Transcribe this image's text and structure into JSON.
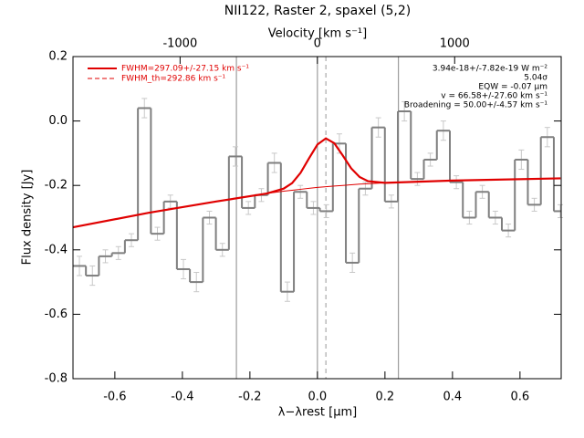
{
  "chart_data": {
    "type": "step",
    "title": "NII122, Raster 2, spaxel (5,2)",
    "xlabel": "λ−λrest [μm]",
    "ylabel": "Flux density [Jy]",
    "x2label": "Velocity [km s⁻¹]",
    "xlim": [
      -0.724,
      0.722
    ],
    "ylim": [
      -0.8,
      0.2
    ],
    "x2lim": [
      -1780,
      1776
    ],
    "xticks": [
      -0.6,
      -0.4,
      -0.2,
      {
        "value": 0,
        "label": "0.0"
      },
      0.2,
      0.4,
      0.6
    ],
    "yticks": [
      -0.8,
      -0.6,
      -0.4,
      -0.2,
      {
        "value": 0,
        "label": "0.0"
      },
      0.2
    ],
    "x2ticks": [
      -1000,
      0,
      1000
    ],
    "x": [
      -0.705,
      -0.6665,
      -0.628,
      -0.5895,
      -0.551,
      -0.5125,
      -0.474,
      -0.4355,
      -0.397,
      -0.3585,
      -0.32,
      -0.2815,
      -0.243,
      -0.2045,
      -0.166,
      -0.1275,
      -0.089,
      -0.0505,
      -0.012,
      0.0265,
      0.065,
      0.1035,
      0.142,
      0.1805,
      0.219,
      0.2575,
      0.296,
      0.3345,
      0.373,
      0.4115,
      0.45,
      0.4885,
      0.527,
      0.5655,
      0.604,
      0.6425,
      0.681,
      0.7195
    ],
    "values": [
      -0.45,
      -0.48,
      -0.42,
      -0.41,
      -0.37,
      0.04,
      -0.35,
      -0.25,
      -0.46,
      -0.5,
      -0.3,
      -0.4,
      -0.11,
      -0.27,
      -0.23,
      -0.13,
      -0.53,
      -0.22,
      -0.27,
      -0.28,
      -0.07,
      -0.44,
      -0.21,
      -0.02,
      -0.25,
      0.03,
      -0.18,
      -0.12,
      -0.03,
      -0.19,
      -0.3,
      -0.22,
      -0.3,
      -0.34,
      -0.12,
      -0.26,
      -0.05,
      -0.28
    ],
    "errors": [
      0.03,
      0.03,
      0.02,
      0.02,
      0.02,
      0.03,
      0.02,
      0.02,
      0.03,
      0.03,
      0.02,
      0.02,
      0.03,
      0.02,
      0.02,
      0.03,
      0.03,
      0.02,
      0.02,
      0.02,
      0.03,
      0.03,
      0.02,
      0.03,
      0.02,
      0.03,
      0.02,
      0.02,
      0.03,
      0.02,
      0.02,
      0.02,
      0.02,
      0.02,
      0.03,
      0.02,
      0.03,
      0.02
    ],
    "color": "#7f7f7f",
    "error_color": "#c8c8c8",
    "vlines": [
      -0.24,
      0,
      0.24
    ],
    "vline_dashed": 0.025,
    "fit": {
      "name": "FWHM=297.09+/-27.15 km s⁻¹",
      "color": "#e00000",
      "x": [
        -0.724,
        -0.5,
        -0.3,
        -0.15,
        -0.1,
        -0.075,
        -0.05,
        -0.025,
        0,
        0.025,
        0.05,
        0.075,
        0.1,
        0.125,
        0.15,
        0.2,
        0.4,
        0.72
      ],
      "values": [
        -0.33,
        -0.285,
        -0.25,
        -0.225,
        -0.21,
        -0.193,
        -0.161,
        -0.116,
        -0.073,
        -0.054,
        -0.069,
        -0.107,
        -0.147,
        -0.174,
        -0.187,
        -0.192,
        -0.185,
        -0.178
      ]
    },
    "continuum": {
      "color": "#e00000",
      "x": [
        -0.15,
        -0.1,
        -0.075,
        -0.05,
        -0.025,
        0,
        0.025,
        0.05,
        0.075,
        0.1,
        0.125,
        0.15,
        0.2
      ],
      "values": [
        -0.225,
        -0.218,
        -0.215,
        -0.212,
        -0.209,
        -0.206,
        -0.204,
        -0.202,
        -0.2,
        -0.198,
        -0.196,
        -0.195,
        -0.192
      ]
    },
    "fwhm_th": {
      "name": "FWHM_th=292.86 km s⁻¹",
      "color": "#e00000"
    },
    "annotations": [
      "3.94e-18+/-7.82e-19 W m⁻²",
      "5.04σ",
      "EQW = -0.07 μm",
      "v = 66.58+/-27.60 km s⁻¹",
      "Broadening = 50.00+/-4.57 km s⁻¹"
    ]
  }
}
